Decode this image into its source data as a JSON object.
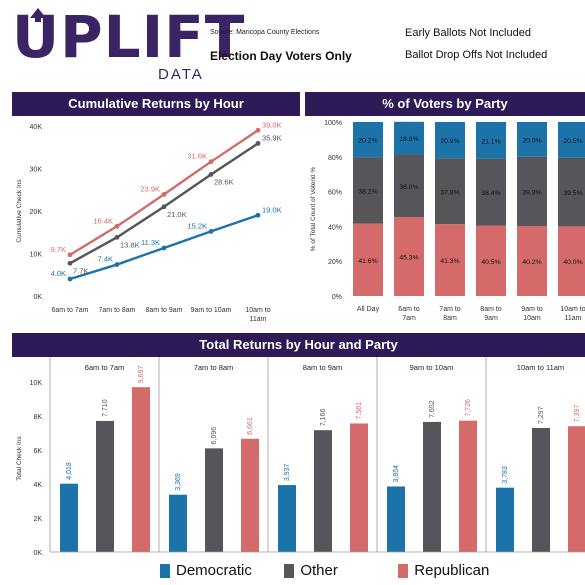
{
  "header": {
    "logo_main": "UPLIFT",
    "logo_sub": "DATA",
    "source": "Source: Maricopa County Elections",
    "subtitle": "Election Day Voters Only",
    "note1": "Early Ballots Not Included",
    "note2": "Ballot Drop Offs Not Included"
  },
  "colors": {
    "banner": "#2e1a57",
    "democratic": "#1c73aa",
    "other": "#56565a",
    "republican": "#d46a6a"
  },
  "legend": {
    "democratic": "Democratic",
    "other": "Other",
    "republican": "Republican"
  },
  "chart_data": [
    {
      "type": "line",
      "title": "Cumulative Returns by Hour",
      "ylabel": "Cumulative Check Ins",
      "categories": [
        "6am to 7am",
        "7am to 8am",
        "8am to 9am",
        "9am to 10am",
        "10am to 11am"
      ],
      "ylim": [
        0,
        40000
      ],
      "yticks": [
        "0K",
        "10K",
        "20K",
        "30K",
        "40K"
      ],
      "series": [
        {
          "color": "#d46a6a",
          "values": [
            9700,
            16400,
            23900,
            31600,
            39000
          ],
          "labels": [
            "9.7K",
            "16.4K",
            "23.9K",
            "31.6K",
            "39.0K"
          ]
        },
        {
          "color": "#56565a",
          "values": [
            7700,
            13800,
            21000,
            28600,
            35900
          ],
          "labels": [
            "7.7K",
            "13.8K",
            "21.0K",
            "28.6K",
            "35.9K"
          ]
        },
        {
          "color": "#1c73aa",
          "values": [
            4000,
            7400,
            11300,
            15200,
            19000
          ],
          "labels": [
            "4.0K",
            "7.4K",
            "11.3K",
            "15.2K",
            "19.0K"
          ]
        }
      ]
    },
    {
      "type": "bar",
      "stacked": true,
      "title": "% of Voters by Party",
      "ylabel": "% of Total Count of Voterid %",
      "categories": [
        "All Day",
        "6am to 7am",
        "7am to 8am",
        "8am to 9am",
        "9am to 10am",
        "10am to 11am"
      ],
      "yticks": [
        "0%",
        "20%",
        "40%",
        "60%",
        "80%",
        "100%"
      ],
      "series": [
        {
          "name": "Republican",
          "color": "#d46a6a",
          "values": [
            41.6,
            45.3,
            41.3,
            40.5,
            40.2,
            40.0
          ],
          "labels": [
            "41.6%",
            "45.3%",
            "41.3%",
            "40.5%",
            "40.2%",
            "40.0%"
          ]
        },
        {
          "name": "Other",
          "color": "#56565a",
          "values": [
            38.2,
            36.0,
            37.8,
            38.4,
            39.8,
            39.5
          ],
          "labels": [
            "38.2%",
            "36.0%",
            "37.8%",
            "38.4%",
            "39.8%",
            "39.5%"
          ]
        },
        {
          "name": "Democratic",
          "color": "#1c73aa",
          "values": [
            20.2,
            18.8,
            20.9,
            21.1,
            20.0,
            20.5
          ],
          "labels": [
            "20.2%",
            "18.8%",
            "20.9%",
            "21.1%",
            "20.0%",
            "20.5%"
          ]
        }
      ]
    },
    {
      "type": "bar",
      "title": "Total Returns by Hour and Party",
      "ylabel": "Total Check Ins",
      "groups": [
        "6am to 7am",
        "7am to 8am",
        "8am to 9am",
        "9am to 10am",
        "10am to 11am"
      ],
      "ylim": [
        0,
        11000
      ],
      "yticks": [
        "0K",
        "2K",
        "4K",
        "6K",
        "8K",
        "10K"
      ],
      "series": [
        {
          "name": "Democratic",
          "color": "#1c73aa",
          "values": [
            4018,
            3369,
            3937,
            3854,
            3783
          ],
          "labels": [
            "4,018",
            "3,369",
            "3,937",
            "3,854",
            "3,783"
          ]
        },
        {
          "name": "Other",
          "color": "#56565a",
          "values": [
            7710,
            6096,
            7166,
            7652,
            7297
          ],
          "labels": [
            "7,710",
            "6,096",
            "7,166",
            "7,652",
            "7,297"
          ]
        },
        {
          "name": "Republican",
          "color": "#d46a6a",
          "values": [
            9697,
            6661,
            7561,
            7726,
            7397
          ],
          "labels": [
            "9,697",
            "6,661",
            "7,561",
            "7,726",
            "7,397"
          ]
        }
      ]
    }
  ]
}
